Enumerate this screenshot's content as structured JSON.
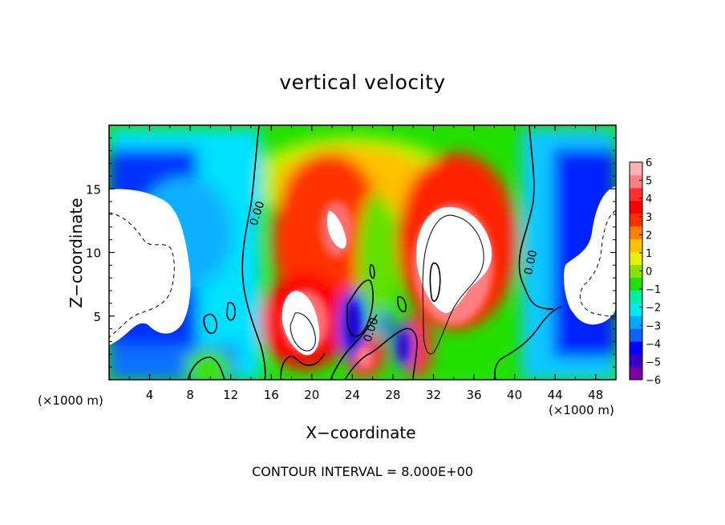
{
  "chart_data": {
    "type": "heatmap",
    "title": "vertical velocity",
    "xlabel": "X−coordinate",
    "ylabel": "Z−coordinate",
    "x_unit_label": "(×1000 m)",
    "xlim": [
      0,
      50
    ],
    "ylim": [
      0,
      20
    ],
    "x_ticks": [
      "4",
      "8",
      "12",
      "16",
      "20",
      "24",
      "28",
      "32",
      "36",
      "40",
      "44",
      "48"
    ],
    "x_tick_values": [
      4,
      8,
      12,
      16,
      20,
      24,
      28,
      32,
      36,
      40,
      44,
      48
    ],
    "y_ticks": [
      "5",
      "10",
      "15"
    ],
    "y_tick_values": [
      5,
      10,
      15
    ],
    "colorbar": {
      "min": -6,
      "max": 6,
      "labels": [
        "6",
        "5",
        "4",
        "3",
        "2",
        "1",
        "0",
        "−1",
        "−2",
        "−3",
        "−4",
        "−5",
        "−6"
      ],
      "colors": [
        "#7a00a8",
        "#3a00c8",
        "#0000ff",
        "#1060ff",
        "#00a8ff",
        "#00e8f0",
        "#00f0a0",
        "#20e000",
        "#8ae000",
        "#e8f000",
        "#ffc000",
        "#ff8000",
        "#ff3000",
        "#ff0000",
        "#ff3030",
        "#ff8080",
        "#ffb0b0"
      ]
    },
    "contour_labels": [
      "0.00",
      "0.00",
      "0.00"
    ],
    "contour_interval_text": "CONTOUR INTERVAL = 8.000E+00",
    "field_features": [
      {
        "x": 3.5,
        "z": 10,
        "sign": "negative",
        "note": "strong downdraft, beyond scale"
      },
      {
        "x": 47.5,
        "z": 9,
        "sign": "negative",
        "note": "strong downdraft, beyond scale"
      },
      {
        "x": 33,
        "z": 10,
        "sign": "positive",
        "note": "strong updraft, beyond scale"
      },
      {
        "x": 21.5,
        "z": 12,
        "sign": "positive",
        "note": "updraft core"
      },
      {
        "x": 18.5,
        "z": 5,
        "sign": "positive",
        "note": "updraft core"
      },
      {
        "x": 25.5,
        "z": 5,
        "sign": "negative",
        "note": "downdraft cell"
      },
      {
        "x": 29.5,
        "z": 2.5,
        "sign": "negative",
        "note": "downdraft cell"
      }
    ]
  }
}
